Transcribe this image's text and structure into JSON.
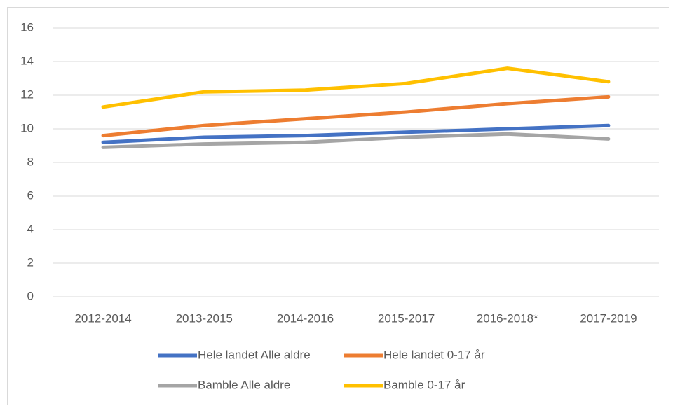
{
  "chart_data": {
    "type": "line",
    "categories": [
      "2012-2014",
      "2013-2015",
      "2014-2016",
      "2015-2017",
      "2016-2018*",
      "2017-2019"
    ],
    "series": [
      {
        "name": "Hele landet Alle aldre",
        "color": "#4472c4",
        "values": [
          9.2,
          9.5,
          9.6,
          9.8,
          10.0,
          10.2
        ]
      },
      {
        "name": "Hele landet 0-17 år",
        "color": "#ed7d31",
        "values": [
          9.6,
          10.2,
          10.6,
          11.0,
          11.5,
          11.9
        ]
      },
      {
        "name": "Bamble Alle aldre",
        "color": "#a5a5a5",
        "values": [
          8.9,
          9.1,
          9.2,
          9.5,
          9.7,
          9.4
        ]
      },
      {
        "name": "Bamble 0-17 år",
        "color": "#ffc000",
        "values": [
          11.3,
          12.2,
          12.3,
          12.7,
          13.6,
          12.8
        ]
      }
    ],
    "ylim": [
      0,
      16
    ],
    "yticks": [
      0,
      2,
      4,
      6,
      8,
      10,
      12,
      14,
      16
    ],
    "grid": true,
    "legend": "bottom"
  }
}
